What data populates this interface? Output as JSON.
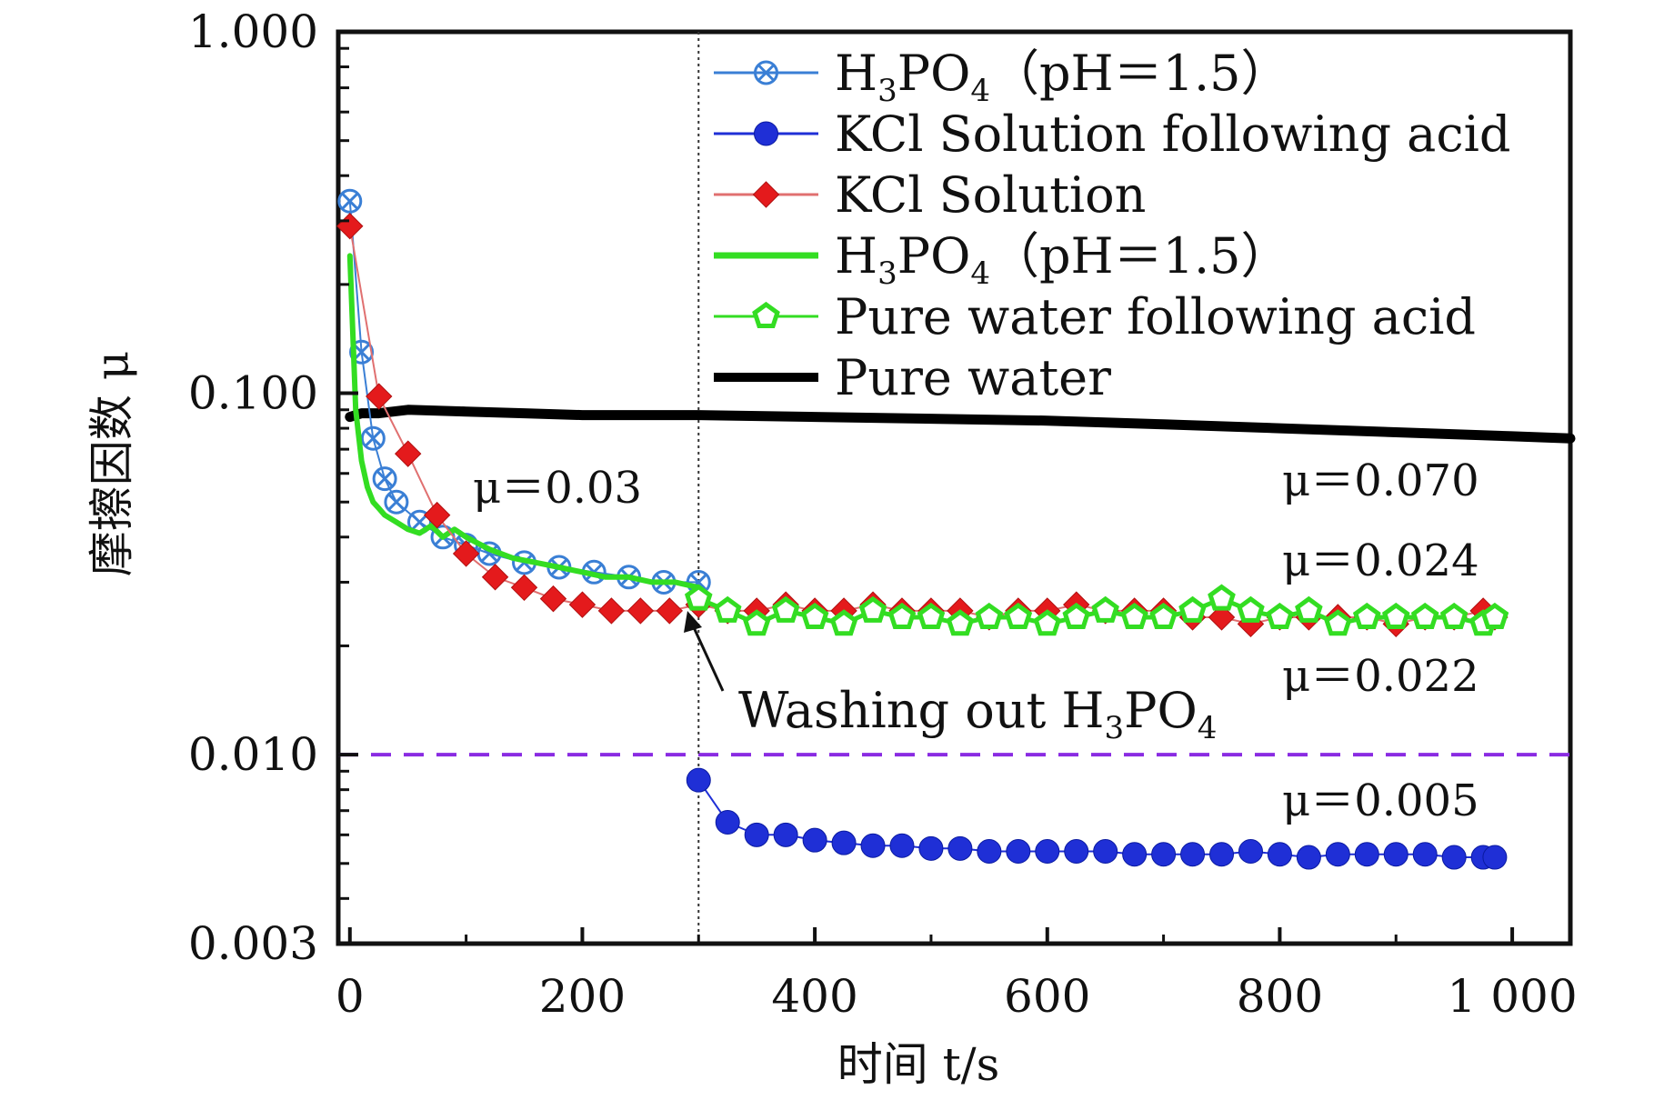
{
  "chart_data": {
    "type": "line",
    "xlabel": "时间 t/s",
    "ylabel": "摩擦因数 μ",
    "y_scale": "log",
    "xlim": [
      -10,
      1050
    ],
    "ylim": [
      0.003,
      1.0
    ],
    "x_ticks": [
      0,
      200,
      400,
      600,
      800,
      1000
    ],
    "x_tick_labels": [
      "0",
      "200",
      "400",
      "600",
      "800",
      "1 000"
    ],
    "y_ticks": [
      0.003,
      0.01,
      0.1,
      1.0
    ],
    "y_tick_labels": [
      "0.003",
      "0.010",
      "0.100",
      "1.000"
    ],
    "reference_lines": [
      {
        "orientation": "horizontal",
        "value": 0.01,
        "style": "dashed",
        "color": "#8a2be2"
      },
      {
        "orientation": "vertical",
        "value": 300,
        "style": "dotted",
        "color": "#333333"
      }
    ],
    "legend_position": "top-right",
    "series": [
      {
        "name": "H3PO4 (pH=1.5)",
        "style": "open-circle-cross",
        "color": "#3a7fd5",
        "x": [
          0,
          10,
          20,
          30,
          40,
          60,
          80,
          100,
          120,
          150,
          180,
          210,
          240,
          270,
          300
        ],
        "y": [
          0.34,
          0.13,
          0.075,
          0.058,
          0.05,
          0.044,
          0.04,
          0.038,
          0.036,
          0.034,
          0.033,
          0.032,
          0.031,
          0.03,
          0.03
        ]
      },
      {
        "name": "KCl Solution following acid",
        "style": "filled-circle",
        "color": "#1f2fd6",
        "x": [
          300,
          325,
          350,
          375,
          400,
          425,
          450,
          475,
          500,
          525,
          550,
          575,
          600,
          625,
          650,
          675,
          700,
          725,
          750,
          775,
          800,
          825,
          850,
          875,
          900,
          925,
          950,
          975,
          985
        ],
        "y": [
          0.0085,
          0.0065,
          0.006,
          0.006,
          0.0058,
          0.0057,
          0.0056,
          0.0056,
          0.0055,
          0.0055,
          0.0054,
          0.0054,
          0.0054,
          0.0054,
          0.0054,
          0.0053,
          0.0053,
          0.0053,
          0.0053,
          0.0054,
          0.0053,
          0.0052,
          0.0053,
          0.0053,
          0.0053,
          0.0053,
          0.0052,
          0.0052,
          0.0052
        ]
      },
      {
        "name": "KCl Solution",
        "style": "filled-diamond",
        "color": "#e41a1c",
        "x": [
          0,
          25,
          50,
          75,
          100,
          125,
          150,
          175,
          200,
          225,
          250,
          275,
          300,
          325,
          350,
          375,
          400,
          425,
          450,
          475,
          500,
          525,
          550,
          575,
          600,
          625,
          650,
          675,
          700,
          725,
          750,
          775,
          800,
          825,
          850,
          875,
          900,
          925,
          950,
          975,
          985
        ],
        "y": [
          0.29,
          0.098,
          0.068,
          0.046,
          0.036,
          0.031,
          0.029,
          0.027,
          0.026,
          0.025,
          0.025,
          0.025,
          0.026,
          0.025,
          0.025,
          0.026,
          0.025,
          0.025,
          0.026,
          0.025,
          0.025,
          0.025,
          0.024,
          0.025,
          0.025,
          0.026,
          0.025,
          0.025,
          0.025,
          0.024,
          0.024,
          0.023,
          0.024,
          0.024,
          0.024,
          0.024,
          0.023,
          0.024,
          0.024,
          0.025,
          0.024
        ]
      },
      {
        "name": "H3PO4 (pH=1.5)",
        "style": "line",
        "color": "#33dd22",
        "x": [
          0,
          5,
          10,
          15,
          20,
          25,
          30,
          35,
          40,
          50,
          60,
          70,
          80,
          90,
          100,
          120,
          140,
          160,
          180,
          200,
          220,
          240,
          260,
          280,
          300
        ],
        "y": [
          0.24,
          0.09,
          0.065,
          0.055,
          0.05,
          0.048,
          0.046,
          0.045,
          0.044,
          0.042,
          0.041,
          0.043,
          0.04,
          0.042,
          0.04,
          0.037,
          0.035,
          0.034,
          0.033,
          0.032,
          0.031,
          0.031,
          0.03,
          0.03,
          0.029
        ]
      },
      {
        "name": "Pure water following acid",
        "style": "open-pentagon",
        "color": "#33dd22",
        "x": [
          300,
          325,
          350,
          375,
          400,
          425,
          450,
          475,
          500,
          525,
          550,
          575,
          600,
          625,
          650,
          675,
          700,
          725,
          750,
          775,
          800,
          825,
          850,
          875,
          900,
          925,
          950,
          975,
          985
        ],
        "y": [
          0.027,
          0.025,
          0.023,
          0.025,
          0.024,
          0.023,
          0.025,
          0.024,
          0.024,
          0.023,
          0.024,
          0.024,
          0.023,
          0.024,
          0.025,
          0.024,
          0.024,
          0.025,
          0.027,
          0.025,
          0.024,
          0.025,
          0.023,
          0.024,
          0.024,
          0.024,
          0.024,
          0.023,
          0.024
        ]
      },
      {
        "name": "Pure water",
        "style": "line",
        "color": "#000000",
        "x": [
          0,
          10,
          25,
          50,
          100,
          150,
          200,
          250,
          300,
          400,
          500,
          600,
          700,
          800,
          900,
          1000,
          1050
        ],
        "y": [
          0.086,
          0.088,
          0.088,
          0.09,
          0.089,
          0.088,
          0.087,
          0.087,
          0.087,
          0.086,
          0.085,
          0.084,
          0.082,
          0.08,
          0.078,
          0.076,
          0.075
        ]
      }
    ],
    "legend": [
      {
        "label_main": "H",
        "label_sub": "3",
        "label_main2": "PO",
        "label_sub2": "4",
        "label_tail": "（pH＝1.5）",
        "style": "open-circle-cross",
        "color": "#3a7fd5"
      },
      {
        "label_main": "KCl Solution following acid",
        "style": "filled-circle",
        "color": "#1f2fd6"
      },
      {
        "label_main": "KCl Solution",
        "style": "filled-diamond",
        "color": "#e41a1c"
      },
      {
        "label_main": "H",
        "label_sub": "3",
        "label_main2": "PO",
        "label_sub2": "4",
        "label_tail": "（pH＝1.5）",
        "style": "line",
        "color": "#33dd22"
      },
      {
        "label_main": "Pure water following acid",
        "style": "open-pentagon",
        "color": "#33dd22"
      },
      {
        "label_main": "Pure water",
        "style": "line",
        "color": "#000000"
      }
    ],
    "annotations": [
      {
        "text": "μ＝0.03"
      },
      {
        "text": "μ＝0.070"
      },
      {
        "text": "μ＝0.024"
      },
      {
        "text": "μ＝0.022"
      },
      {
        "text": "μ＝0.005"
      },
      {
        "text_main": "Washing out H",
        "text_sub": "3",
        "text_main2": "PO",
        "text_sub2": "4"
      }
    ]
  }
}
